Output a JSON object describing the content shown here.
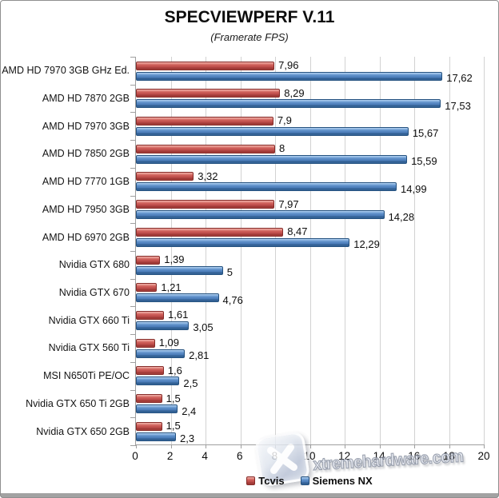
{
  "title": "SPECVIEWPERF V.11",
  "subtitle": "(Framerate FPS)",
  "watermark": {
    "text": "xtremehardware.com",
    "logo_glyph": "X"
  },
  "colors": {
    "tcvis_red": "#c0504d",
    "siemens_blue": "#4f81bd",
    "gridline": "#d2d2d2",
    "axis": "#9f9f9f"
  },
  "chart_data": {
    "type": "bar",
    "orientation": "horizontal",
    "title": "SPECVIEWPERF V.11",
    "subtitle": "(Framerate FPS)",
    "xlabel": "",
    "ylabel": "",
    "xlim": [
      0,
      20
    ],
    "xticks": [
      0,
      2,
      4,
      6,
      8,
      10,
      12,
      14,
      16,
      18,
      20
    ],
    "grid": "vertical",
    "legend_position": "bottom",
    "categories": [
      "AMD HD 7970 3GB GHz Ed.",
      "AMD HD 7870 2GB",
      "AMD HD 7970 3GB",
      "AMD HD 7850 2GB",
      "AMD HD 7770 1GB",
      "AMD HD 7950 3GB",
      "AMD HD 6970 2GB",
      "Nvidia GTX 680",
      "Nvidia GTX 670",
      "Nvidia GTX 660 Ti",
      "Nvidia GTX 560 Ti",
      "MSI N650Ti PE/OC",
      "Nvidia GTX 650 Ti 2GB",
      "Nvidia GTX 650 2GB"
    ],
    "series": [
      {
        "name": "Tcvis",
        "color": "#c0504d",
        "values": [
          7.96,
          8.29,
          7.9,
          8,
          3.32,
          7.97,
          8.47,
          1.39,
          1.21,
          1.61,
          1.09,
          1.6,
          1.5,
          1.5
        ],
        "labels": [
          "7,96",
          "8,29",
          "7,9",
          "8",
          "3,32",
          "7,97",
          "8,47",
          "1,39",
          "1,21",
          "1,61",
          "1,09",
          "1,6",
          "1,5",
          "1,5"
        ]
      },
      {
        "name": "Siemens NX",
        "color": "#4f81bd",
        "values": [
          17.62,
          17.53,
          15.67,
          15.59,
          14.99,
          14.28,
          12.29,
          5,
          4.76,
          3.05,
          2.81,
          2.5,
          2.4,
          2.3
        ],
        "labels": [
          "17,62",
          "17,53",
          "15,67",
          "15,59",
          "14,99",
          "14,28",
          "12,29",
          "5",
          "4,76",
          "3,05",
          "2,81",
          "2,5",
          "2,4",
          "2,3"
        ]
      }
    ]
  }
}
